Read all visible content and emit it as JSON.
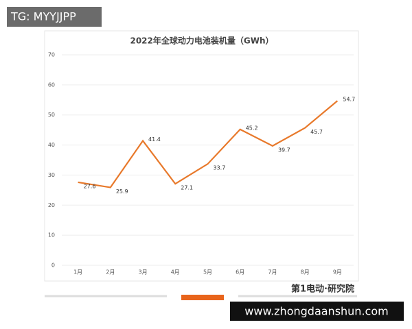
{
  "chart_data": {
    "type": "line",
    "title": "2022年全球动力电池装机量（GWh）",
    "categories": [
      "1月",
      "2月",
      "3月",
      "4月",
      "5月",
      "6月",
      "7月",
      "8月",
      "9月"
    ],
    "series": [
      {
        "name": "装机量",
        "color": "#e8792b",
        "values": [
          27.6,
          25.9,
          41.4,
          27.1,
          33.7,
          45.2,
          39.7,
          45.7,
          54.7
        ]
      }
    ],
    "ylim": [
      0,
      70
    ],
    "yticks": [
      0,
      10,
      20,
      30,
      40,
      50,
      60,
      70
    ],
    "grid": true
  },
  "overlay": {
    "tag": "TG: MYYJJPP",
    "logo": "第1电动·研究院",
    "watermark": "www.zhongdaanshun.com"
  }
}
